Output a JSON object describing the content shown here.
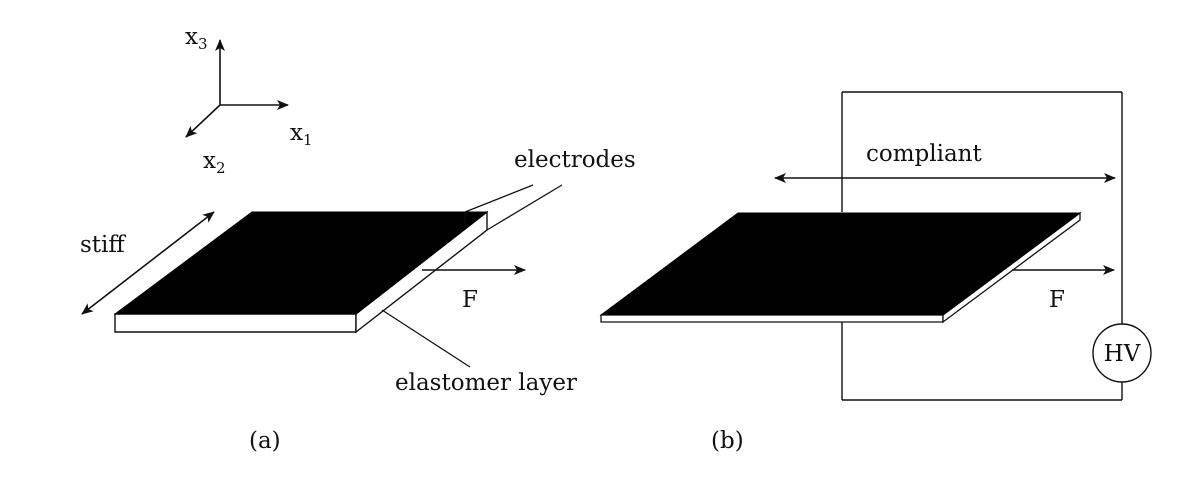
{
  "axes": {
    "x3": {
      "base": "x",
      "sub": "3"
    },
    "x1": {
      "base": "x",
      "sub": "1"
    },
    "x2": {
      "base": "x",
      "sub": "2"
    }
  },
  "panel_a": {
    "caption": "(a)",
    "stiff_label": "stiff",
    "electrodes_label": "electrodes",
    "elastomer_label": "elastomer layer",
    "force_label": "F"
  },
  "panel_b": {
    "caption": "(b)",
    "compliant_label": "compliant",
    "force_label": "F",
    "source_label": "HV"
  },
  "colors": {
    "electrode": "#000000",
    "elastomer": "#ffffff",
    "line": "#111111"
  }
}
